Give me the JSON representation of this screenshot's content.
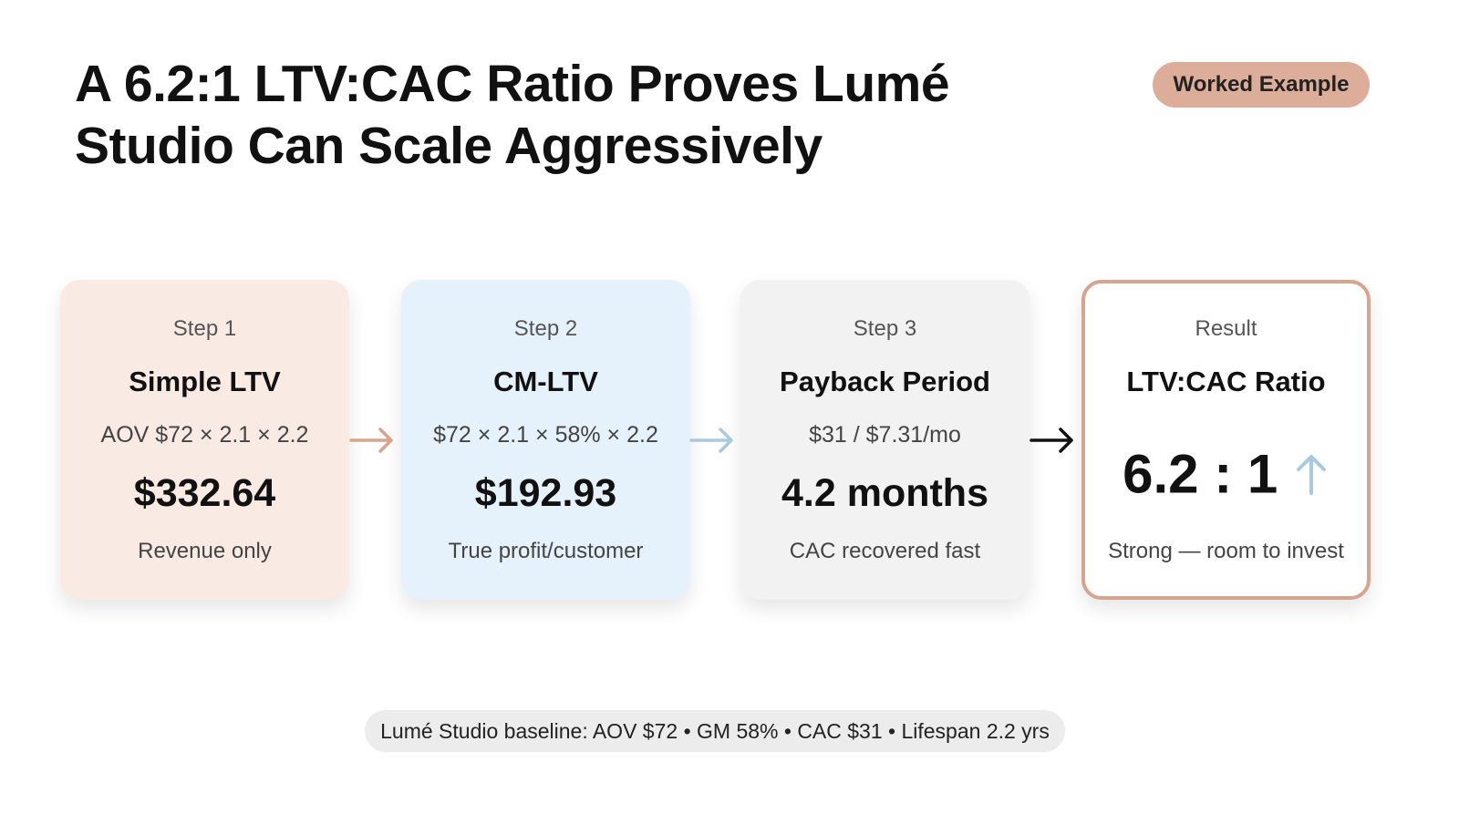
{
  "header": {
    "title": "A 6.2:1 LTV:CAC Ratio Proves Lumé Studio Can Scale Aggressively",
    "badge": "Worked Example"
  },
  "cards": [
    {
      "step": "Step 1",
      "heading": "Simple LTV",
      "detail": "AOV $72 × 2.1 × 2.2",
      "value": "$332.64",
      "note": "Revenue only"
    },
    {
      "step": "Step 2",
      "heading": "CM-LTV",
      "detail": "$72 × 2.1 × 58% × 2.2",
      "value": "$192.93",
      "note": "True profit/customer"
    },
    {
      "step": "Step 3",
      "heading": "Payback Period",
      "detail": "$31 / $7.31/mo",
      "value": "4.2 months",
      "note": "CAC recovered fast"
    },
    {
      "step": "Result",
      "heading": "LTV:CAC Ratio",
      "value": "6.2 : 1",
      "note": "Strong — room to invest"
    }
  ],
  "footer": "Lumé Studio baseline: AOV $72 • GM 58% • CAC $31 • Lifespan 2.2 yrs"
}
